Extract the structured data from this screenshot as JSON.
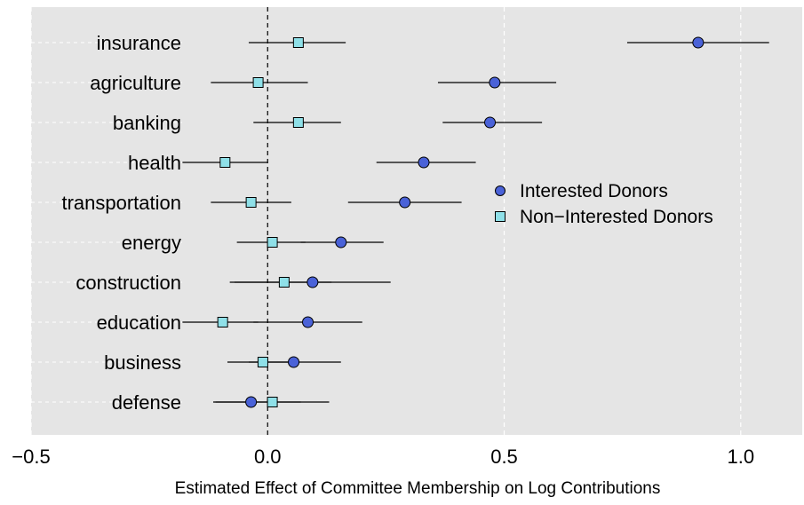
{
  "chart_data": {
    "type": "scatter",
    "subtype": "dot-and-whisker",
    "xlabel": "Estimated Effect of Committee Membership on Log Contributions",
    "xlim": [
      -0.5,
      1.13
    ],
    "x_ticks": [
      -0.5,
      0.0,
      0.5,
      1.0
    ],
    "x_tick_labels": [
      "−0.5",
      "0.0",
      "0.5",
      "1.0"
    ],
    "reference_line_x": 0,
    "grid": true,
    "legend_position": "right-middle",
    "categories": [
      "insurance",
      "agriculture",
      "banking",
      "health",
      "transportation",
      "energy",
      "construction",
      "education",
      "business",
      "defense"
    ],
    "series": [
      {
        "name": "Interested Donors",
        "marker": "circle",
        "color": "#4a62d8",
        "estimate": [
          0.91,
          0.48,
          0.47,
          0.33,
          0.29,
          0.155,
          0.095,
          0.085,
          0.055,
          -0.035
        ],
        "ci_low": [
          0.76,
          0.36,
          0.37,
          0.23,
          0.17,
          0.07,
          -0.07,
          -0.03,
          -0.04,
          -0.11
        ],
        "ci_high": [
          1.06,
          0.61,
          0.58,
          0.44,
          0.41,
          0.245,
          0.26,
          0.2,
          0.155,
          0.13
        ]
      },
      {
        "name": "Non−Interested Donors",
        "marker": "square",
        "color": "#8fe0e8",
        "estimate": [
          0.065,
          -0.02,
          0.065,
          -0.09,
          -0.035,
          0.01,
          0.035,
          -0.095,
          -0.01,
          0.01
        ],
        "ci_low": [
          -0.04,
          -0.12,
          -0.03,
          -0.18,
          -0.12,
          -0.065,
          -0.08,
          -0.18,
          -0.085,
          -0.115
        ],
        "ci_high": [
          0.165,
          0.085,
          0.155,
          0.0,
          0.05,
          0.08,
          0.135,
          -0.02,
          0.06,
          0.07
        ]
      }
    ]
  }
}
